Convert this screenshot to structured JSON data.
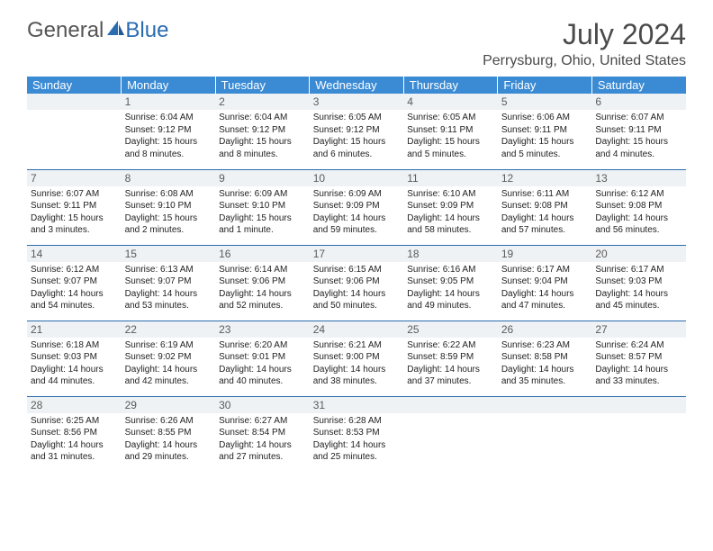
{
  "logo": {
    "general": "General",
    "blue": "Blue"
  },
  "header": {
    "title": "July 2024",
    "location": "Perrysburg, Ohio, United States"
  },
  "colors": {
    "header_bg": "#3b8bd4",
    "accent": "#2a6cb0",
    "daynum_bg": "#eff2f4"
  },
  "daysOfWeek": [
    "Sunday",
    "Monday",
    "Tuesday",
    "Wednesday",
    "Thursday",
    "Friday",
    "Saturday"
  ],
  "weeks": [
    [
      {
        "num": "",
        "lines": [
          "",
          "",
          "",
          ""
        ]
      },
      {
        "num": "1",
        "lines": [
          "Sunrise: 6:04 AM",
          "Sunset: 9:12 PM",
          "Daylight: 15 hours",
          "and 8 minutes."
        ]
      },
      {
        "num": "2",
        "lines": [
          "Sunrise: 6:04 AM",
          "Sunset: 9:12 PM",
          "Daylight: 15 hours",
          "and 8 minutes."
        ]
      },
      {
        "num": "3",
        "lines": [
          "Sunrise: 6:05 AM",
          "Sunset: 9:12 PM",
          "Daylight: 15 hours",
          "and 6 minutes."
        ]
      },
      {
        "num": "4",
        "lines": [
          "Sunrise: 6:05 AM",
          "Sunset: 9:11 PM",
          "Daylight: 15 hours",
          "and 5 minutes."
        ]
      },
      {
        "num": "5",
        "lines": [
          "Sunrise: 6:06 AM",
          "Sunset: 9:11 PM",
          "Daylight: 15 hours",
          "and 5 minutes."
        ]
      },
      {
        "num": "6",
        "lines": [
          "Sunrise: 6:07 AM",
          "Sunset: 9:11 PM",
          "Daylight: 15 hours",
          "and 4 minutes."
        ]
      }
    ],
    [
      {
        "num": "7",
        "lines": [
          "Sunrise: 6:07 AM",
          "Sunset: 9:11 PM",
          "Daylight: 15 hours",
          "and 3 minutes."
        ]
      },
      {
        "num": "8",
        "lines": [
          "Sunrise: 6:08 AM",
          "Sunset: 9:10 PM",
          "Daylight: 15 hours",
          "and 2 minutes."
        ]
      },
      {
        "num": "9",
        "lines": [
          "Sunrise: 6:09 AM",
          "Sunset: 9:10 PM",
          "Daylight: 15 hours",
          "and 1 minute."
        ]
      },
      {
        "num": "10",
        "lines": [
          "Sunrise: 6:09 AM",
          "Sunset: 9:09 PM",
          "Daylight: 14 hours",
          "and 59 minutes."
        ]
      },
      {
        "num": "11",
        "lines": [
          "Sunrise: 6:10 AM",
          "Sunset: 9:09 PM",
          "Daylight: 14 hours",
          "and 58 minutes."
        ]
      },
      {
        "num": "12",
        "lines": [
          "Sunrise: 6:11 AM",
          "Sunset: 9:08 PM",
          "Daylight: 14 hours",
          "and 57 minutes."
        ]
      },
      {
        "num": "13",
        "lines": [
          "Sunrise: 6:12 AM",
          "Sunset: 9:08 PM",
          "Daylight: 14 hours",
          "and 56 minutes."
        ]
      }
    ],
    [
      {
        "num": "14",
        "lines": [
          "Sunrise: 6:12 AM",
          "Sunset: 9:07 PM",
          "Daylight: 14 hours",
          "and 54 minutes."
        ]
      },
      {
        "num": "15",
        "lines": [
          "Sunrise: 6:13 AM",
          "Sunset: 9:07 PM",
          "Daylight: 14 hours",
          "and 53 minutes."
        ]
      },
      {
        "num": "16",
        "lines": [
          "Sunrise: 6:14 AM",
          "Sunset: 9:06 PM",
          "Daylight: 14 hours",
          "and 52 minutes."
        ]
      },
      {
        "num": "17",
        "lines": [
          "Sunrise: 6:15 AM",
          "Sunset: 9:06 PM",
          "Daylight: 14 hours",
          "and 50 minutes."
        ]
      },
      {
        "num": "18",
        "lines": [
          "Sunrise: 6:16 AM",
          "Sunset: 9:05 PM",
          "Daylight: 14 hours",
          "and 49 minutes."
        ]
      },
      {
        "num": "19",
        "lines": [
          "Sunrise: 6:17 AM",
          "Sunset: 9:04 PM",
          "Daylight: 14 hours",
          "and 47 minutes."
        ]
      },
      {
        "num": "20",
        "lines": [
          "Sunrise: 6:17 AM",
          "Sunset: 9:03 PM",
          "Daylight: 14 hours",
          "and 45 minutes."
        ]
      }
    ],
    [
      {
        "num": "21",
        "lines": [
          "Sunrise: 6:18 AM",
          "Sunset: 9:03 PM",
          "Daylight: 14 hours",
          "and 44 minutes."
        ]
      },
      {
        "num": "22",
        "lines": [
          "Sunrise: 6:19 AM",
          "Sunset: 9:02 PM",
          "Daylight: 14 hours",
          "and 42 minutes."
        ]
      },
      {
        "num": "23",
        "lines": [
          "Sunrise: 6:20 AM",
          "Sunset: 9:01 PM",
          "Daylight: 14 hours",
          "and 40 minutes."
        ]
      },
      {
        "num": "24",
        "lines": [
          "Sunrise: 6:21 AM",
          "Sunset: 9:00 PM",
          "Daylight: 14 hours",
          "and 38 minutes."
        ]
      },
      {
        "num": "25",
        "lines": [
          "Sunrise: 6:22 AM",
          "Sunset: 8:59 PM",
          "Daylight: 14 hours",
          "and 37 minutes."
        ]
      },
      {
        "num": "26",
        "lines": [
          "Sunrise: 6:23 AM",
          "Sunset: 8:58 PM",
          "Daylight: 14 hours",
          "and 35 minutes."
        ]
      },
      {
        "num": "27",
        "lines": [
          "Sunrise: 6:24 AM",
          "Sunset: 8:57 PM",
          "Daylight: 14 hours",
          "and 33 minutes."
        ]
      }
    ],
    [
      {
        "num": "28",
        "lines": [
          "Sunrise: 6:25 AM",
          "Sunset: 8:56 PM",
          "Daylight: 14 hours",
          "and 31 minutes."
        ]
      },
      {
        "num": "29",
        "lines": [
          "Sunrise: 6:26 AM",
          "Sunset: 8:55 PM",
          "Daylight: 14 hours",
          "and 29 minutes."
        ]
      },
      {
        "num": "30",
        "lines": [
          "Sunrise: 6:27 AM",
          "Sunset: 8:54 PM",
          "Daylight: 14 hours",
          "and 27 minutes."
        ]
      },
      {
        "num": "31",
        "lines": [
          "Sunrise: 6:28 AM",
          "Sunset: 8:53 PM",
          "Daylight: 14 hours",
          "and 25 minutes."
        ]
      },
      {
        "num": "",
        "lines": [
          "",
          "",
          "",
          ""
        ]
      },
      {
        "num": "",
        "lines": [
          "",
          "",
          "",
          ""
        ]
      },
      {
        "num": "",
        "lines": [
          "",
          "",
          "",
          ""
        ]
      }
    ]
  ]
}
